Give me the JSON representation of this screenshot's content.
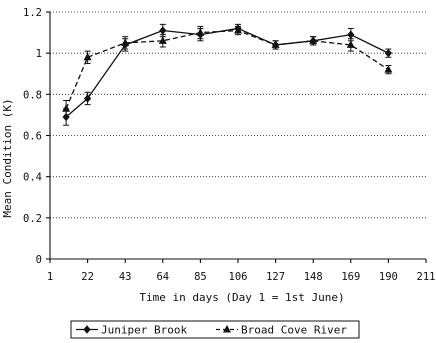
{
  "chart_data": {
    "type": "line",
    "xlabel": "Time in days (Day 1 = 1st June)",
    "ylabel": "Mean Condition (K)",
    "x_ticks": [
      1,
      22,
      43,
      64,
      85,
      106,
      127,
      148,
      169,
      190,
      211
    ],
    "y_ticks": [
      "0",
      "0.2",
      "0.4",
      "0.6",
      "0.8",
      "1",
      "1.2"
    ],
    "xlim": [
      1,
      211
    ],
    "ylim": [
      0,
      1.2
    ],
    "grid": "y-major-dotted",
    "legend": "bottom",
    "series": [
      {
        "name": "Juniper Brook",
        "marker": "diamond",
        "line": "solid",
        "x": [
          10,
          22,
          43,
          64,
          85,
          106,
          127,
          148,
          169,
          190
        ],
        "y": [
          0.69,
          0.78,
          1.04,
          1.11,
          1.09,
          1.12,
          1.04,
          1.06,
          1.09,
          1.0
        ],
        "err": [
          0.04,
          0.03,
          0.03,
          0.03,
          0.03,
          0.02,
          0.02,
          0.02,
          0.03,
          0.02
        ]
      },
      {
        "name": "Broad Cove River",
        "marker": "triangle",
        "line": "dashed",
        "x": [
          10,
          22,
          43,
          64,
          85,
          106,
          127,
          148,
          169,
          190
        ],
        "y": [
          0.73,
          0.98,
          1.05,
          1.06,
          1.1,
          1.11,
          1.04,
          1.06,
          1.04,
          0.92
        ],
        "err": [
          0.04,
          0.03,
          0.03,
          0.03,
          0.03,
          0.02,
          0.02,
          0.02,
          0.03,
          0.02
        ]
      }
    ]
  }
}
